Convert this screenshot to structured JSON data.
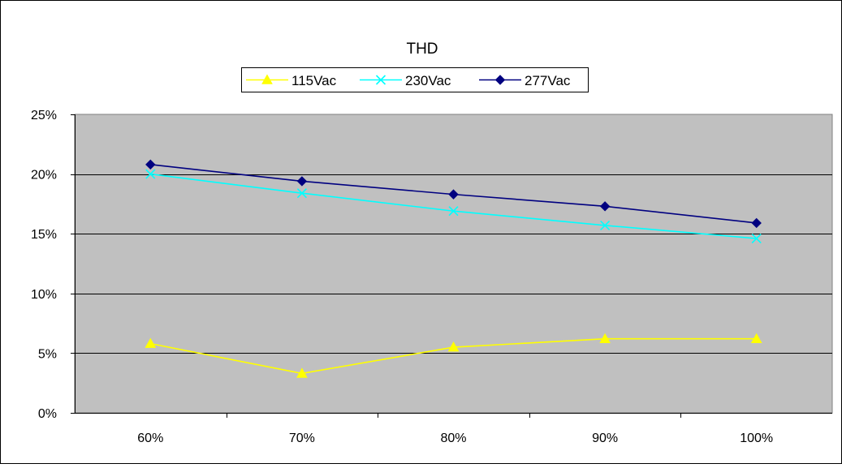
{
  "chart_data": {
    "type": "line",
    "title": "THD",
    "xlabel": "",
    "ylabel": "",
    "categories": [
      "60%",
      "70%",
      "80%",
      "90%",
      "100%"
    ],
    "ylim": [
      0,
      25
    ],
    "y_ticks": [
      "0%",
      "5%",
      "10%",
      "15%",
      "20%",
      "25%"
    ],
    "y_tick_values": [
      0,
      5,
      10,
      15,
      20,
      25
    ],
    "grid": true,
    "legend_placement": "top",
    "plot_background": "#c0c0c0",
    "series": [
      {
        "name": "115Vac",
        "color": "#ffff00",
        "marker": "triangle",
        "values": [
          5.8,
          3.3,
          5.5,
          6.2,
          6.2
        ]
      },
      {
        "name": "230Vac",
        "color": "#00ffff",
        "marker": "x",
        "values": [
          20.0,
          18.4,
          16.9,
          15.7,
          14.6
        ]
      },
      {
        "name": "277Vac",
        "color": "#000080",
        "marker": "diamond",
        "values": [
          20.8,
          19.4,
          18.3,
          17.3,
          15.9
        ]
      }
    ]
  }
}
